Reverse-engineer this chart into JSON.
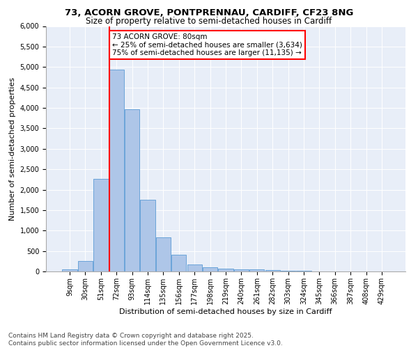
{
  "title1": "73, ACORN GROVE, PONTPRENNAU, CARDIFF, CF23 8NG",
  "title2": "Size of property relative to semi-detached houses in Cardiff",
  "xlabel": "Distribution of semi-detached houses by size in Cardiff",
  "ylabel": "Number of semi-detached properties",
  "footer1": "Contains HM Land Registry data © Crown copyright and database right 2025.",
  "footer2": "Contains public sector information licensed under the Open Government Licence v3.0.",
  "bin_labels": [
    "9sqm",
    "30sqm",
    "51sqm",
    "72sqm",
    "93sqm",
    "114sqm",
    "135sqm",
    "156sqm",
    "177sqm",
    "198sqm",
    "219sqm",
    "240sqm",
    "261sqm",
    "282sqm",
    "303sqm",
    "324sqm",
    "345sqm",
    "366sqm",
    "387sqm",
    "408sqm",
    "429sqm"
  ],
  "bar_values": [
    50,
    250,
    2270,
    4930,
    3970,
    1760,
    830,
    405,
    170,
    100,
    65,
    55,
    55,
    30,
    15,
    10,
    5,
    5,
    3,
    2,
    1
  ],
  "bar_color": "#aec6e8",
  "bar_edge_color": "#5b9bd5",
  "vline_x": 3,
  "vline_color": "red",
  "property_label": "73 ACORN GROVE: 80sqm",
  "smaller_pct": "25%",
  "smaller_count": "3,634",
  "larger_pct": "75%",
  "larger_count": "11,135",
  "ylim": [
    0,
    6000
  ],
  "yticks": [
    0,
    500,
    1000,
    1500,
    2000,
    2500,
    3000,
    3500,
    4000,
    4500,
    5000,
    5500,
    6000
  ],
  "plot_bg_color": "#e8eef8",
  "title_fontsize": 9.5,
  "subtitle_fontsize": 8.5,
  "axis_label_fontsize": 8,
  "tick_fontsize": 7,
  "annotation_fontsize": 7.5,
  "footer_fontsize": 6.5
}
